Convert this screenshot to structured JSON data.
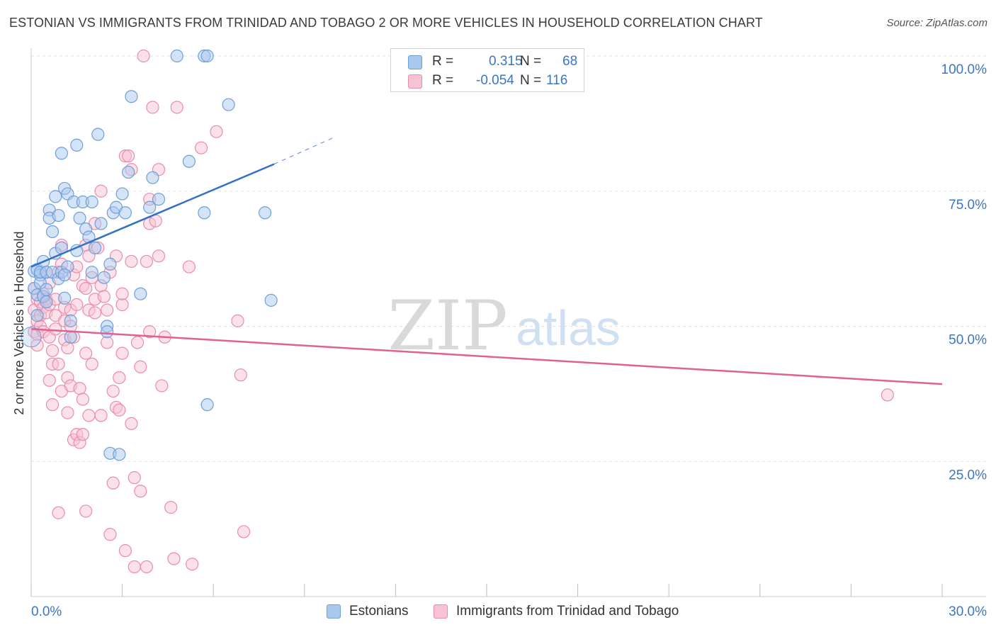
{
  "header": {
    "title": "ESTONIAN VS IMMIGRANTS FROM TRINIDAD AND TOBAGO 2 OR MORE VEHICLES IN HOUSEHOLD CORRELATION CHART",
    "source": "Source: ZipAtlas.com"
  },
  "watermark": {
    "zip": "ZIP",
    "atlas": "atlas"
  },
  "stats_box": {
    "rows": [
      {
        "r_label": "R =",
        "r_value": "0.315",
        "n_label": "N =",
        "n_value": "68",
        "color": "#8db4e6"
      },
      {
        "r_label": "R =",
        "r_value": "-0.054",
        "n_label": "N =",
        "n_value": "116",
        "color": "#f2a7c0"
      }
    ]
  },
  "legend": {
    "estonians": "Estonians",
    "trinidad": "Immigrants from Trinidad and Tobago"
  },
  "colors": {
    "blue_fill": "#a9c8ee",
    "blue_stroke": "#6f9fd8",
    "blue_line": "#3270c8",
    "pink_fill": "#f7c3d3",
    "pink_stroke": "#ea8cab",
    "pink_line": "#e0628e",
    "axis_label": "#3a76c4",
    "grid": "#e2e2e2"
  },
  "chart_data": {
    "type": "scatter",
    "title": "ESTONIAN VS IMMIGRANTS FROM TRINIDAD AND TOBAGO 2 OR MORE VEHICLES IN HOUSEHOLD CORRELATION CHART",
    "xlabel": "",
    "ylabel": "2 or more Vehicles in Household",
    "xlim": [
      0,
      30
    ],
    "ylim": [
      0,
      100
    ],
    "x_tick_labels": [
      "0.0%",
      "30.0%"
    ],
    "y_ticks": [
      25,
      50,
      75,
      100
    ],
    "y_tick_labels": [
      "25.0%",
      "50.0%",
      "75.0%",
      "100.0%"
    ],
    "grid": true,
    "legend_position": "bottom",
    "series": [
      {
        "name": "Estonians",
        "R": 0.315,
        "N": 68,
        "trend": {
          "x": [
            0,
            8.0
          ],
          "y": [
            61.0,
            80.0
          ],
          "dashed_to": [
            10.0,
            85.0
          ]
        },
        "points": [
          [
            0.1,
            60.2
          ],
          [
            0.1,
            57.0
          ],
          [
            0.2,
            60.5
          ],
          [
            0.2,
            55.8
          ],
          [
            0.3,
            59.5
          ],
          [
            0.3,
            58.0
          ],
          [
            0.3,
            60.0
          ],
          [
            0.4,
            62.0
          ],
          [
            0.4,
            55.5
          ],
          [
            0.5,
            60.0
          ],
          [
            0.5,
            56.8
          ],
          [
            0.6,
            71.5
          ],
          [
            0.6,
            70.0
          ],
          [
            0.7,
            60.0
          ],
          [
            0.7,
            67.5
          ],
          [
            0.8,
            63.5
          ],
          [
            0.8,
            74.0
          ],
          [
            0.9,
            58.8
          ],
          [
            0.9,
            70.5
          ],
          [
            1.0,
            82.0
          ],
          [
            1.0,
            64.5
          ],
          [
            1.0,
            60.0
          ],
          [
            1.1,
            75.5
          ],
          [
            1.1,
            55.2
          ],
          [
            1.2,
            74.5
          ],
          [
            1.2,
            61.0
          ],
          [
            1.3,
            51.0
          ],
          [
            1.3,
            48.0
          ],
          [
            1.4,
            73.0
          ],
          [
            1.5,
            83.5
          ],
          [
            1.5,
            64.0
          ],
          [
            1.6,
            70.0
          ],
          [
            1.7,
            73.0
          ],
          [
            1.8,
            68.0
          ],
          [
            1.9,
            66.5
          ],
          [
            2.0,
            73.0
          ],
          [
            2.0,
            60.0
          ],
          [
            2.1,
            64.5
          ],
          [
            2.2,
            85.5
          ],
          [
            2.3,
            69.0
          ],
          [
            2.4,
            59.0
          ],
          [
            2.5,
            50.0
          ],
          [
            2.5,
            49.0
          ],
          [
            2.6,
            26.5
          ],
          [
            2.7,
            71.0
          ],
          [
            2.8,
            72.0
          ],
          [
            2.9,
            26.3
          ],
          [
            3.0,
            74.5
          ],
          [
            3.1,
            71.0
          ],
          [
            3.2,
            78.5
          ],
          [
            3.3,
            92.5
          ],
          [
            3.6,
            56.0
          ],
          [
            3.9,
            72.0
          ],
          [
            4.0,
            77.5
          ],
          [
            4.2,
            73.5
          ],
          [
            4.8,
            100.0
          ],
          [
            5.2,
            80.5
          ],
          [
            5.7,
            100.0
          ],
          [
            5.8,
            100.0
          ],
          [
            5.7,
            71.0
          ],
          [
            5.8,
            35.5
          ],
          [
            6.5,
            91.0
          ],
          [
            7.7,
            71.0
          ],
          [
            7.9,
            54.8
          ],
          [
            0.2,
            52.0
          ],
          [
            0.5,
            54.5
          ],
          [
            1.1,
            59.5
          ],
          [
            2.6,
            61.5
          ]
        ]
      },
      {
        "name": "Immigrants from Trinidad and Tobago",
        "R": -0.054,
        "N": 116,
        "trend": {
          "x": [
            0,
            30
          ],
          "y": [
            49.5,
            39.3
          ]
        },
        "points": [
          [
            0.1,
            57.0
          ],
          [
            0.1,
            53.0
          ],
          [
            0.1,
            49.0
          ],
          [
            0.2,
            55.0
          ],
          [
            0.2,
            51.0
          ],
          [
            0.2,
            48.5
          ],
          [
            0.3,
            54.5
          ],
          [
            0.3,
            52.0
          ],
          [
            0.3,
            50.0
          ],
          [
            0.4,
            56.0
          ],
          [
            0.4,
            53.5
          ],
          [
            0.4,
            49.0
          ],
          [
            0.5,
            60.0
          ],
          [
            0.5,
            55.0
          ],
          [
            0.5,
            52.5
          ],
          [
            0.6,
            58.0
          ],
          [
            0.6,
            54.0
          ],
          [
            0.6,
            48.0
          ],
          [
            0.7,
            45.5
          ],
          [
            0.7,
            43.0
          ],
          [
            0.7,
            35.5
          ],
          [
            0.8,
            55.0
          ],
          [
            0.8,
            52.0
          ],
          [
            0.8,
            49.5
          ],
          [
            0.9,
            43.0
          ],
          [
            0.9,
            15.5
          ],
          [
            1.0,
            65.0
          ],
          [
            1.0,
            61.5
          ],
          [
            1.0,
            38.0
          ],
          [
            1.1,
            53.5
          ],
          [
            1.1,
            51.0
          ],
          [
            1.1,
            47.5
          ],
          [
            1.2,
            46.0
          ],
          [
            1.2,
            40.5
          ],
          [
            1.3,
            53.0
          ],
          [
            1.3,
            50.0
          ],
          [
            1.3,
            39.0
          ],
          [
            1.4,
            59.5
          ],
          [
            1.4,
            29.0
          ],
          [
            1.5,
            61.0
          ],
          [
            1.5,
            54.0
          ],
          [
            1.5,
            30.0
          ],
          [
            1.6,
            38.5
          ],
          [
            1.6,
            28.5
          ],
          [
            1.7,
            57.5
          ],
          [
            1.7,
            36.5
          ],
          [
            1.7,
            30.0
          ],
          [
            1.8,
            65.0
          ],
          [
            1.8,
            57.0
          ],
          [
            1.8,
            45.0
          ],
          [
            1.8,
            15.8
          ],
          [
            1.9,
            63.0
          ],
          [
            1.9,
            53.0
          ],
          [
            1.9,
            33.5
          ],
          [
            2.0,
            59.0
          ],
          [
            2.0,
            43.0
          ],
          [
            2.1,
            69.0
          ],
          [
            2.1,
            55.0
          ],
          [
            2.1,
            52.5
          ],
          [
            2.2,
            64.5
          ],
          [
            2.3,
            75.0
          ],
          [
            2.3,
            57.5
          ],
          [
            2.3,
            33.5
          ],
          [
            2.4,
            55.5
          ],
          [
            2.5,
            53.0
          ],
          [
            2.6,
            60.0
          ],
          [
            2.6,
            11.5
          ],
          [
            2.7,
            38.0
          ],
          [
            2.7,
            21.0
          ],
          [
            2.8,
            63.0
          ],
          [
            2.8,
            35.0
          ],
          [
            2.9,
            34.5
          ],
          [
            2.9,
            40.5
          ],
          [
            3.0,
            54.0
          ],
          [
            3.0,
            45.0
          ],
          [
            3.1,
            81.5
          ],
          [
            3.1,
            8.5
          ],
          [
            3.2,
            81.5
          ],
          [
            3.3,
            79.0
          ],
          [
            3.3,
            62.0
          ],
          [
            3.3,
            32.0
          ],
          [
            3.4,
            22.0
          ],
          [
            3.4,
            5.5
          ],
          [
            3.5,
            47.0
          ],
          [
            3.6,
            42.5
          ],
          [
            3.6,
            19.5
          ],
          [
            3.7,
            100.0
          ],
          [
            3.8,
            62.0
          ],
          [
            3.8,
            5.5
          ],
          [
            3.9,
            73.5
          ],
          [
            3.9,
            69.0
          ],
          [
            3.9,
            49.0
          ],
          [
            4.0,
            90.5
          ],
          [
            4.1,
            69.5
          ],
          [
            4.2,
            63.0
          ],
          [
            4.2,
            79.0
          ],
          [
            4.3,
            39.0
          ],
          [
            4.4,
            48.0
          ],
          [
            4.6,
            16.5
          ],
          [
            4.7,
            7.0
          ],
          [
            4.8,
            90.5
          ],
          [
            5.2,
            61.0
          ],
          [
            5.3,
            6.0
          ],
          [
            5.6,
            83.0
          ],
          [
            6.1,
            86.0
          ],
          [
            6.8,
            51.0
          ],
          [
            6.9,
            41.0
          ],
          [
            7.0,
            12.0
          ],
          [
            28.2,
            37.3
          ],
          [
            3.0,
            56.0
          ],
          [
            0.2,
            46.5
          ],
          [
            0.6,
            40.0
          ],
          [
            1.4,
            48.0
          ],
          [
            2.5,
            47.0
          ],
          [
            1.2,
            34.0
          ],
          [
            0.9,
            60.0
          ]
        ]
      }
    ]
  }
}
